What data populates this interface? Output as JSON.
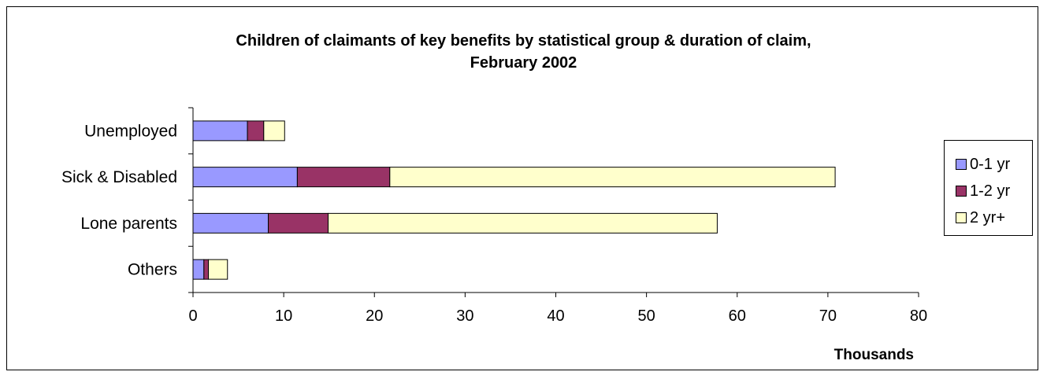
{
  "chart_data": {
    "type": "bar",
    "orientation": "horizontal",
    "stacked": true,
    "title": "Children of claimants of key benefits by statistical group & duration of claim,",
    "subtitle": "February 2002",
    "xlabel": "Thousands",
    "ylabel": "",
    "xlim": [
      0,
      80
    ],
    "xticks": [
      "0",
      "10",
      "20",
      "30",
      "40",
      "50",
      "60",
      "70",
      "80"
    ],
    "categories": [
      "Unemployed",
      "Sick & Disabled",
      "Lone parents",
      "Others"
    ],
    "series": [
      {
        "name": "0-1 yr",
        "color": "#9999ff",
        "values": [
          6.0,
          11.5,
          8.3,
          1.2
        ]
      },
      {
        "name": "1-2 yr",
        "color": "#993366",
        "values": [
          1.8,
          10.2,
          6.6,
          0.5
        ]
      },
      {
        "name": "2 yr+",
        "color": "#ffffcc",
        "values": [
          2.3,
          49.1,
          42.9,
          2.1
        ]
      }
    ],
    "grid": false,
    "legend_position": "right"
  }
}
